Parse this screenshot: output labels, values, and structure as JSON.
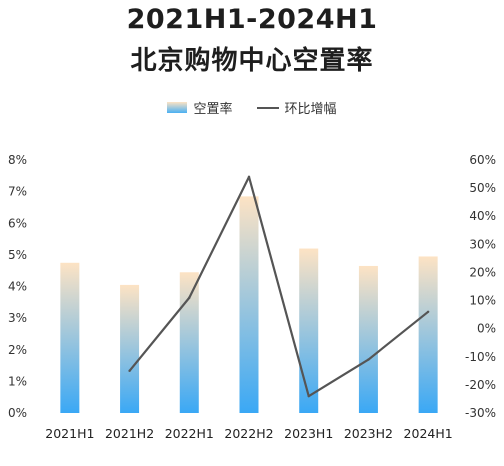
{
  "title_line1": "2021H1-2024H1",
  "title_line2": "北京购物中心空置率",
  "legend": {
    "bar_label": "空置率",
    "line_label": "环比增幅"
  },
  "colors": {
    "bar_top": "#fde3c4",
    "bar_bottom": "#3aa8f5",
    "line": "#555555"
  },
  "chart_data": {
    "type": "bar",
    "title": "2021H1-2024H1 北京购物中心空置率",
    "categories": [
      "2021H1",
      "2021H2",
      "2022H1",
      "2022H2",
      "2023H1",
      "2023H2",
      "2024H1"
    ],
    "series": [
      {
        "name": "空置率",
        "type": "bar",
        "axis": "left",
        "values": [
          4.75,
          4.05,
          4.45,
          6.85,
          5.2,
          4.65,
          4.95
        ]
      },
      {
        "name": "环比增幅",
        "type": "line",
        "axis": "right",
        "values": [
          null,
          -15,
          11,
          54,
          -24,
          -11,
          6
        ]
      }
    ],
    "y_left": {
      "ylim": [
        0,
        8
      ],
      "ticks": [
        "0%",
        "1%",
        "2%",
        "3%",
        "4%",
        "5%",
        "6%",
        "7%",
        "8%"
      ]
    },
    "y_right": {
      "ylim": [
        -30,
        60
      ],
      "ticks": [
        "-30%",
        "-20%",
        "-10%",
        "0%",
        "10%",
        "20%",
        "30%",
        "40%",
        "50%",
        "60%"
      ]
    },
    "legend_position": "top-center",
    "grid": false
  }
}
